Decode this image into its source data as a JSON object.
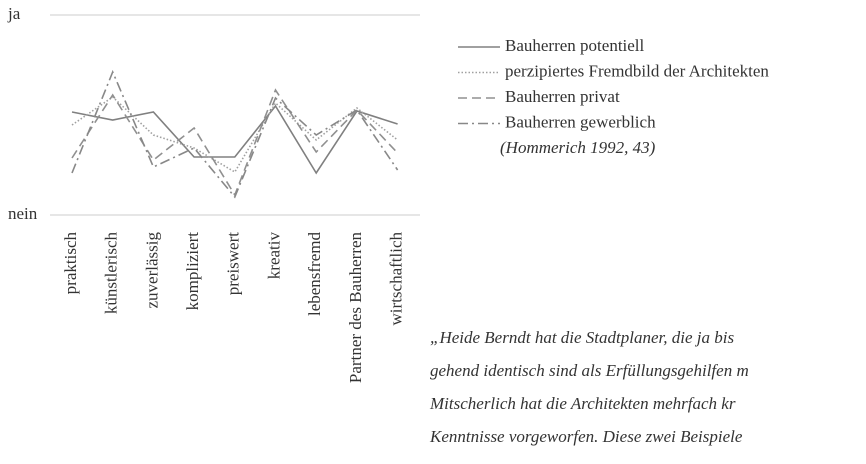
{
  "chart_data": {
    "type": "line",
    "categories": [
      "praktisch",
      "künstlerisch",
      "zuverlässig",
      "kompliziert",
      "preiswert",
      "kreativ",
      "lebensfremd",
      "Partner des Bauherren",
      "wirtschaftlich"
    ],
    "ylim": [
      0,
      100
    ],
    "yticks": [
      {
        "value": 0,
        "label": "nein"
      },
      {
        "value": 100,
        "label": "ja"
      }
    ],
    "grid": true,
    "series": [
      {
        "name": "Bauherren potentiell",
        "color": "#808080",
        "line_style": "solid",
        "values": [
          51.5,
          47.5,
          51.5,
          29,
          29,
          54.5,
          21,
          52,
          45.5
        ]
      },
      {
        "name": "perzipiertes Fremdbild der Architekten",
        "color": "#a0a0a0",
        "line_style": "dotted",
        "values": [
          45,
          59,
          40,
          33.5,
          21.5,
          56,
          37.5,
          53.5,
          37.5
        ]
      },
      {
        "name": "Bauherren privat",
        "color": "#909090",
        "line_style": "dashed",
        "values": [
          28.5,
          60,
          27.5,
          43.5,
          10,
          62.5,
          31.5,
          52.5,
          31
        ]
      },
      {
        "name": "Bauherren gewerblich",
        "color": "#888888",
        "line_style": "dashdot",
        "values": [
          21,
          71.5,
          24,
          33.5,
          9,
          58.5,
          40,
          52.5,
          22.5
        ]
      }
    ],
    "source": "(Hommerich 1992, 43)"
  },
  "quote": {
    "lines": [
      "„Heide Berndt hat die Stadtplaner, die ja bis",
      "gehend identisch sind als Erfüllungsgehilfen m",
      "Mitscherlich hat die Architekten mehrfach kr",
      "Kenntnisse vorgeworfen. Diese zwei Beispiele"
    ]
  }
}
